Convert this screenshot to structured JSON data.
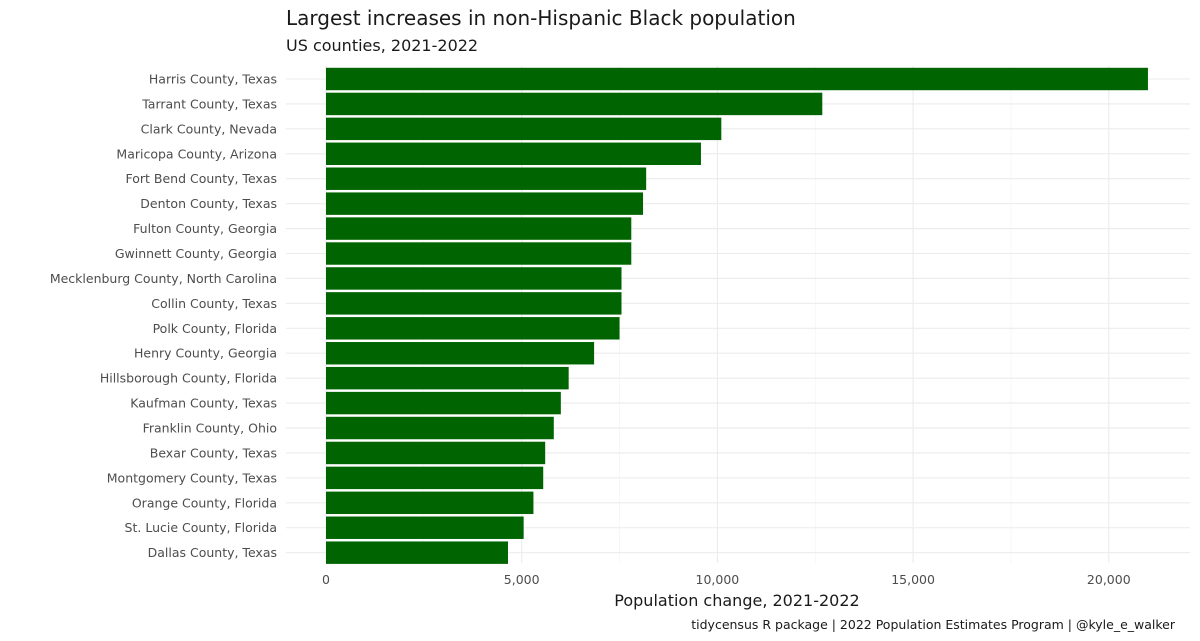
{
  "chart_data": {
    "type": "bar",
    "orientation": "horizontal",
    "title": "Largest increases in non-Hispanic Black population",
    "subtitle": "US counties, 2021-2022",
    "xlabel": "Population change, 2021-2022",
    "ylabel": "",
    "caption": "tidycensus R package | 2022 Population Estimates Program | @kyle_e_walker",
    "xlim": [
      0,
      22000
    ],
    "xticks": [
      0,
      5000,
      10000,
      15000,
      20000
    ],
    "xtick_labels": [
      "0",
      "5,000",
      "10,000",
      "15,000",
      "20,000"
    ],
    "grid": true,
    "bar_color": "#006400",
    "categories": [
      "Harris County, Texas",
      "Tarrant County, Texas",
      "Clark County, Nevada",
      "Maricopa County, Arizona",
      "Fort Bend County, Texas",
      "Denton County, Texas",
      "Fulton County, Georgia",
      "Gwinnett County, Georgia",
      "Mecklenburg County, North Carolina",
      "Collin County, Texas",
      "Polk County, Florida",
      "Henry County, Georgia",
      "Hillsborough County, Florida",
      "Kaufman County, Texas",
      "Franklin County, Ohio",
      "Bexar County, Texas",
      "Montgomery County, Texas",
      "Orange County, Florida",
      "St. Lucie County, Florida",
      "Dallas County, Texas"
    ],
    "values": [
      21000,
      12680,
      10100,
      9580,
      8180,
      8100,
      7800,
      7800,
      7550,
      7550,
      7500,
      6850,
      6200,
      6000,
      5820,
      5600,
      5550,
      5300,
      5050,
      4650
    ]
  }
}
